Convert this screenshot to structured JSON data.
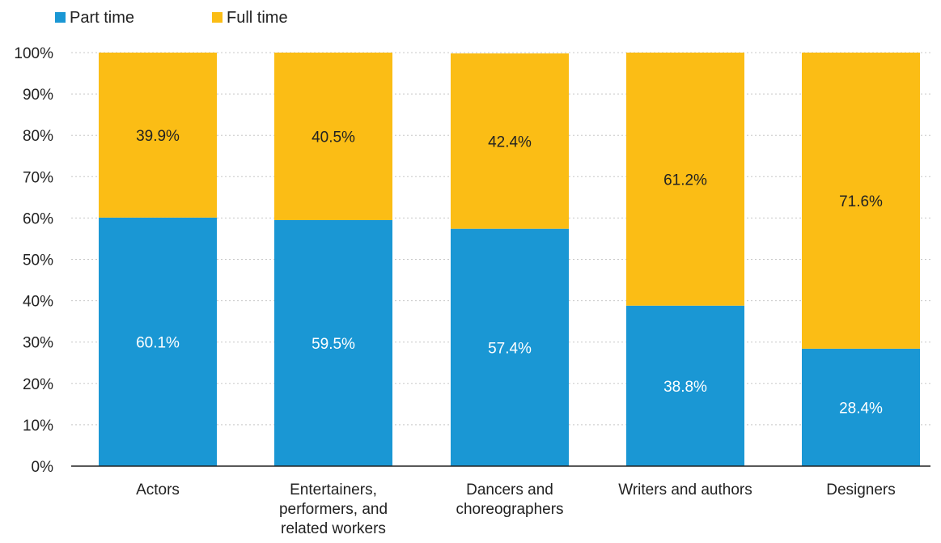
{
  "chart_data": {
    "type": "bar",
    "stacked": true,
    "categories": [
      [
        "Actors"
      ],
      [
        "Entertainers,",
        "performers, and",
        "related workers"
      ],
      [
        "Dancers and",
        "choreographers"
      ],
      [
        "Writers and authors"
      ],
      [
        "Designers"
      ]
    ],
    "series": [
      {
        "name": "Part time",
        "color": "#1a97d4",
        "label_color": "#ffffff",
        "values": [
          60.1,
          59.5,
          57.4,
          38.8,
          28.4
        ],
        "labels": [
          "60.1%",
          "59.5%",
          "57.4%",
          "38.8%",
          "28.4%"
        ]
      },
      {
        "name": "Full time",
        "color": "#fbbd15",
        "label_color": "#222222",
        "values": [
          39.9,
          40.5,
          42.4,
          61.2,
          71.6
        ],
        "labels": [
          "39.9%",
          "40.5%",
          "42.4%",
          "61.2%",
          "71.6%"
        ]
      }
    ],
    "yticks": [
      "0%",
      "10%",
      "20%",
      "30%",
      "40%",
      "50%",
      "60%",
      "70%",
      "80%",
      "90%",
      "100%"
    ],
    "ylim": [
      0,
      100
    ],
    "grid": true,
    "legend": "top-left",
    "title": "",
    "xlabel": "",
    "ylabel": ""
  }
}
